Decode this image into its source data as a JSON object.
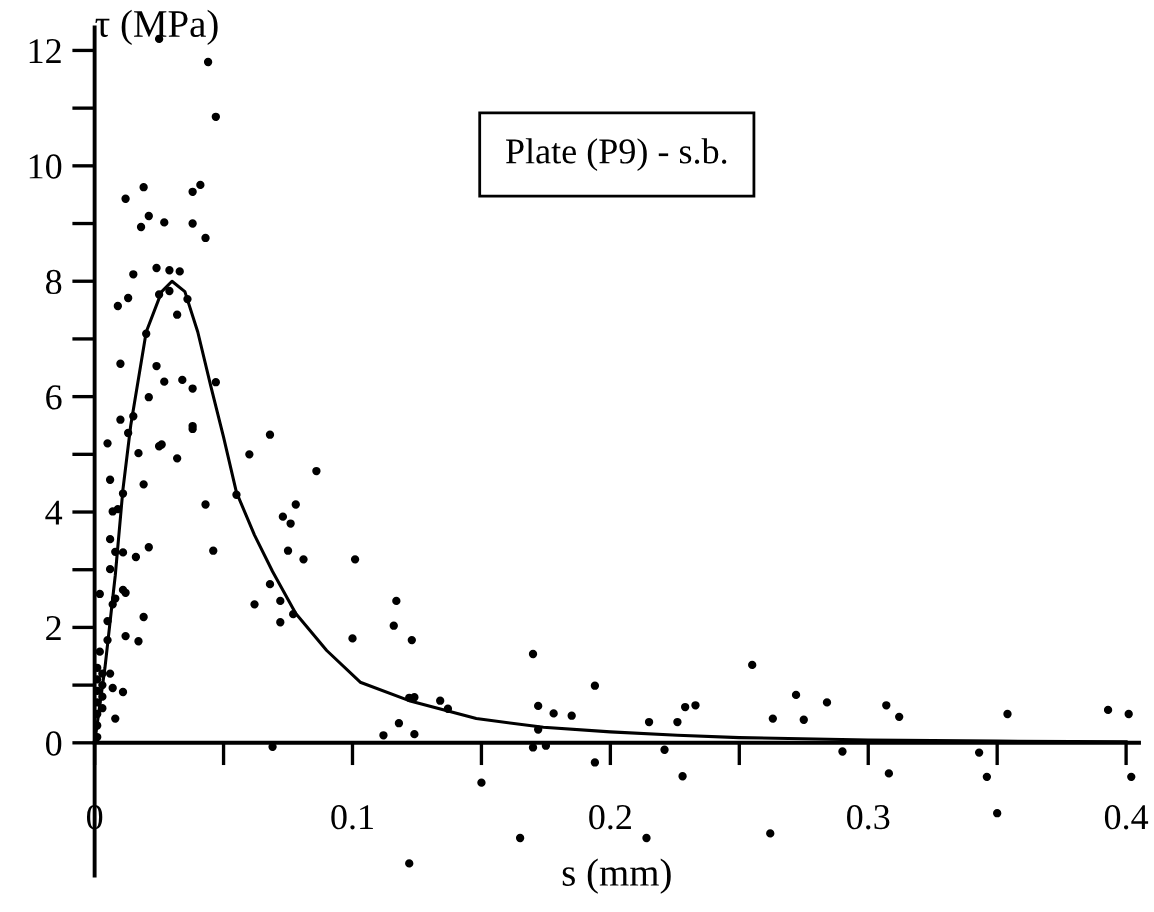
{
  "chart_data": {
    "type": "scatter",
    "xlabel": "s (mm)",
    "ylabel": "τ (MPa)",
    "annotations": [
      "Plate (P9) - s.b."
    ],
    "xlim": [
      0,
      0.405
    ],
    "ylim": [
      -2.3,
      12.4
    ],
    "xticks": [
      0,
      {
        "value": 0.05,
        "label": null
      },
      0.1,
      {
        "value": 0.15,
        "label": null
      },
      0.2,
      {
        "value": 0.25,
        "label": null
      },
      0.3,
      {
        "value": 0.35,
        "label": null
      },
      0.4
    ],
    "yticks": [
      0,
      {
        "value": 1,
        "label": null
      },
      2,
      {
        "value": 3,
        "label": null
      },
      4,
      {
        "value": 5,
        "label": null
      },
      6,
      {
        "value": 7,
        "label": null
      },
      8,
      {
        "value": 9,
        "label": null
      },
      10,
      {
        "value": 11,
        "label": null
      },
      12
    ],
    "grid": false,
    "legend": false,
    "series": [
      {
        "color": "#000000",
        "marker": "circle",
        "x": [
          0.025,
          0.044,
          0.047,
          0.012,
          0.019,
          0.021,
          0.018,
          0.027,
          0.038,
          0.041,
          0.038,
          0.043,
          0.024,
          0.029,
          0.033,
          0.015,
          0.009,
          0.013,
          0.025,
          0.029,
          0.036,
          0.032,
          0.02,
          0.01,
          0.024,
          0.027,
          0.034,
          0.038,
          0.047,
          0.021,
          0.01,
          0.015,
          0.038,
          0.005,
          0.013,
          0.017,
          0.025,
          0.026,
          0.032,
          0.038,
          0.006,
          0.019,
          0.011,
          0.007,
          0.009,
          0.043,
          0.006,
          0.008,
          0.011,
          0.016,
          0.021,
          0.046,
          0.006,
          0.002,
          0.008,
          0.011,
          0.012,
          0.007,
          0.019,
          0.005,
          0.005,
          0.012,
          0.017,
          0.002,
          0.011,
          0.008,
          0.001,
          0.001,
          0.001,
          0.001,
          0.001,
          0.001,
          0.001,
          0.003,
          0.003,
          0.003,
          0.003,
          0.006,
          0.007,
          0.06,
          0.068,
          0.086,
          0.055,
          0.073,
          0.076,
          0.078,
          0.075,
          0.081,
          0.101,
          0.068,
          0.062,
          0.072,
          0.077,
          0.072,
          0.1,
          0.069,
          0.117,
          0.116,
          0.123,
          0.122,
          0.124,
          0.134,
          0.137,
          0.118,
          0.112,
          0.124,
          0.15,
          0.122,
          0.165,
          0.17,
          0.172,
          0.178,
          0.185,
          0.172,
          0.17,
          0.175,
          0.194,
          0.194,
          0.215,
          0.221,
          0.214,
          0.226,
          0.228,
          0.229,
          0.233,
          0.255,
          0.272,
          0.284,
          0.263,
          0.275,
          0.29,
          0.262,
          0.307,
          0.312,
          0.308,
          0.354,
          0.343,
          0.346,
          0.35,
          0.393,
          0.401,
          0.402
        ],
        "values": [
          12.2,
          11.8,
          10.85,
          9.43,
          9.63,
          9.13,
          8.94,
          9.02,
          9.55,
          9.67,
          9.0,
          8.75,
          8.23,
          8.19,
          8.17,
          8.12,
          7.57,
          7.71,
          7.77,
          7.83,
          7.69,
          7.42,
          7.09,
          6.57,
          6.53,
          6.26,
          6.29,
          6.14,
          6.25,
          5.99,
          5.6,
          5.66,
          5.49,
          5.19,
          5.37,
          5.02,
          5.14,
          5.17,
          4.93,
          5.44,
          4.56,
          4.48,
          4.32,
          4.01,
          4.05,
          4.13,
          3.53,
          3.31,
          3.3,
          3.22,
          3.39,
          3.33,
          3.01,
          2.58,
          2.5,
          2.65,
          2.6,
          2.4,
          2.18,
          2.11,
          1.78,
          1.85,
          1.76,
          1.58,
          0.88,
          0.42,
          1.3,
          1.1,
          0.9,
          0.7,
          0.5,
          0.3,
          0.1,
          1.2,
          1.0,
          0.8,
          0.6,
          1.2,
          0.95,
          5.0,
          5.34,
          4.71,
          4.3,
          3.92,
          3.8,
          4.13,
          3.33,
          3.18,
          3.18,
          2.75,
          2.4,
          2.46,
          2.23,
          2.09,
          1.81,
          -0.07,
          2.46,
          2.03,
          1.78,
          0.78,
          0.79,
          0.73,
          0.59,
          0.34,
          0.13,
          0.15,
          -0.69,
          -2.09,
          -1.65,
          1.54,
          0.64,
          0.51,
          0.47,
          0.23,
          -0.08,
          -0.05,
          0.99,
          -0.34,
          0.36,
          -0.12,
          -1.65,
          0.36,
          -0.58,
          0.62,
          0.65,
          1.35,
          0.83,
          0.7,
          0.42,
          0.4,
          -0.15,
          -1.57,
          0.65,
          0.45,
          -0.53,
          0.5,
          -0.17,
          -0.59,
          -1.22,
          0.57,
          0.5,
          -0.59
        ]
      },
      {
        "type": "line",
        "color": "#000000",
        "marker": "none",
        "line_style": "solid",
        "x": [
          0,
          0.004,
          0.008,
          0.011,
          0.014,
          0.02,
          0.026,
          0.03,
          0.035,
          0.04,
          0.045,
          0.05,
          0.055,
          0.062,
          0.069,
          0.078,
          0.09,
          0.103,
          0.122,
          0.148,
          0.174,
          0.2,
          0.226,
          0.25,
          0.3,
          0.35,
          0.4
        ],
        "values": [
          0,
          1.3,
          2.9,
          4.4,
          5.5,
          7.12,
          7.82,
          8.0,
          7.82,
          7.12,
          6.19,
          5.3,
          4.34,
          3.6,
          2.97,
          2.24,
          1.6,
          1.05,
          0.73,
          0.42,
          0.27,
          0.19,
          0.13,
          0.09,
          0.05,
          0.03,
          0.02
        ]
      }
    ]
  }
}
